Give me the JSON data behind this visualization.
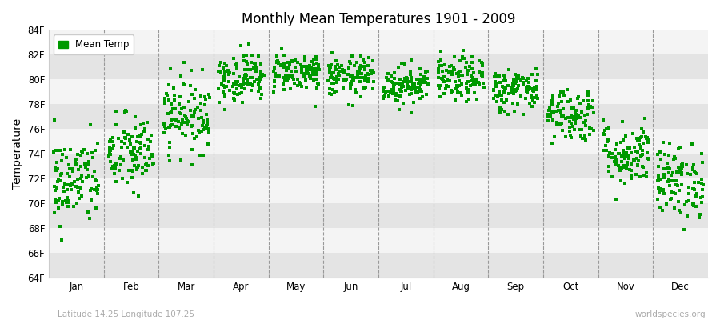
{
  "title": "Monthly Mean Temperatures 1901 - 2009",
  "ylabel": "Temperature",
  "xlabel_bottom_left": "Latitude 14.25 Longitude 107.25",
  "xlabel_bottom_right": "worldspecies.org",
  "legend_label": "Mean Temp",
  "dot_color": "#009900",
  "background_color": "#ffffff",
  "band_color_dark": "#e4e4e4",
  "band_color_light": "#f4f4f4",
  "ylim": [
    64,
    84
  ],
  "yticks": [
    64,
    66,
    68,
    70,
    72,
    74,
    76,
    78,
    80,
    82,
    84
  ],
  "ytick_labels": [
    "64F",
    "66F",
    "68F",
    "70F",
    "72F",
    "74F",
    "76F",
    "78F",
    "80F",
    "82F",
    "84F"
  ],
  "months": [
    "Jan",
    "Feb",
    "Mar",
    "Apr",
    "May",
    "Jun",
    "Jul",
    "Aug",
    "Sep",
    "Oct",
    "Nov",
    "Dec"
  ],
  "n_years": 109,
  "seed": 42,
  "monthly_mean_temps_F": [
    71.8,
    74.0,
    77.2,
    80.2,
    80.6,
    80.2,
    79.6,
    80.0,
    79.2,
    77.2,
    74.0,
    71.8
  ],
  "monthly_std_temps_F": [
    1.8,
    1.6,
    1.5,
    1.0,
    0.8,
    0.8,
    0.8,
    0.9,
    0.9,
    1.1,
    1.3,
    1.5
  ],
  "monthly_spread_F": [
    3.5,
    2.8,
    2.5,
    1.8,
    1.5,
    1.5,
    1.5,
    1.6,
    1.8,
    2.2,
    2.5,
    3.0
  ],
  "figsize": [
    9.0,
    4.0
  ],
  "dpi": 100
}
